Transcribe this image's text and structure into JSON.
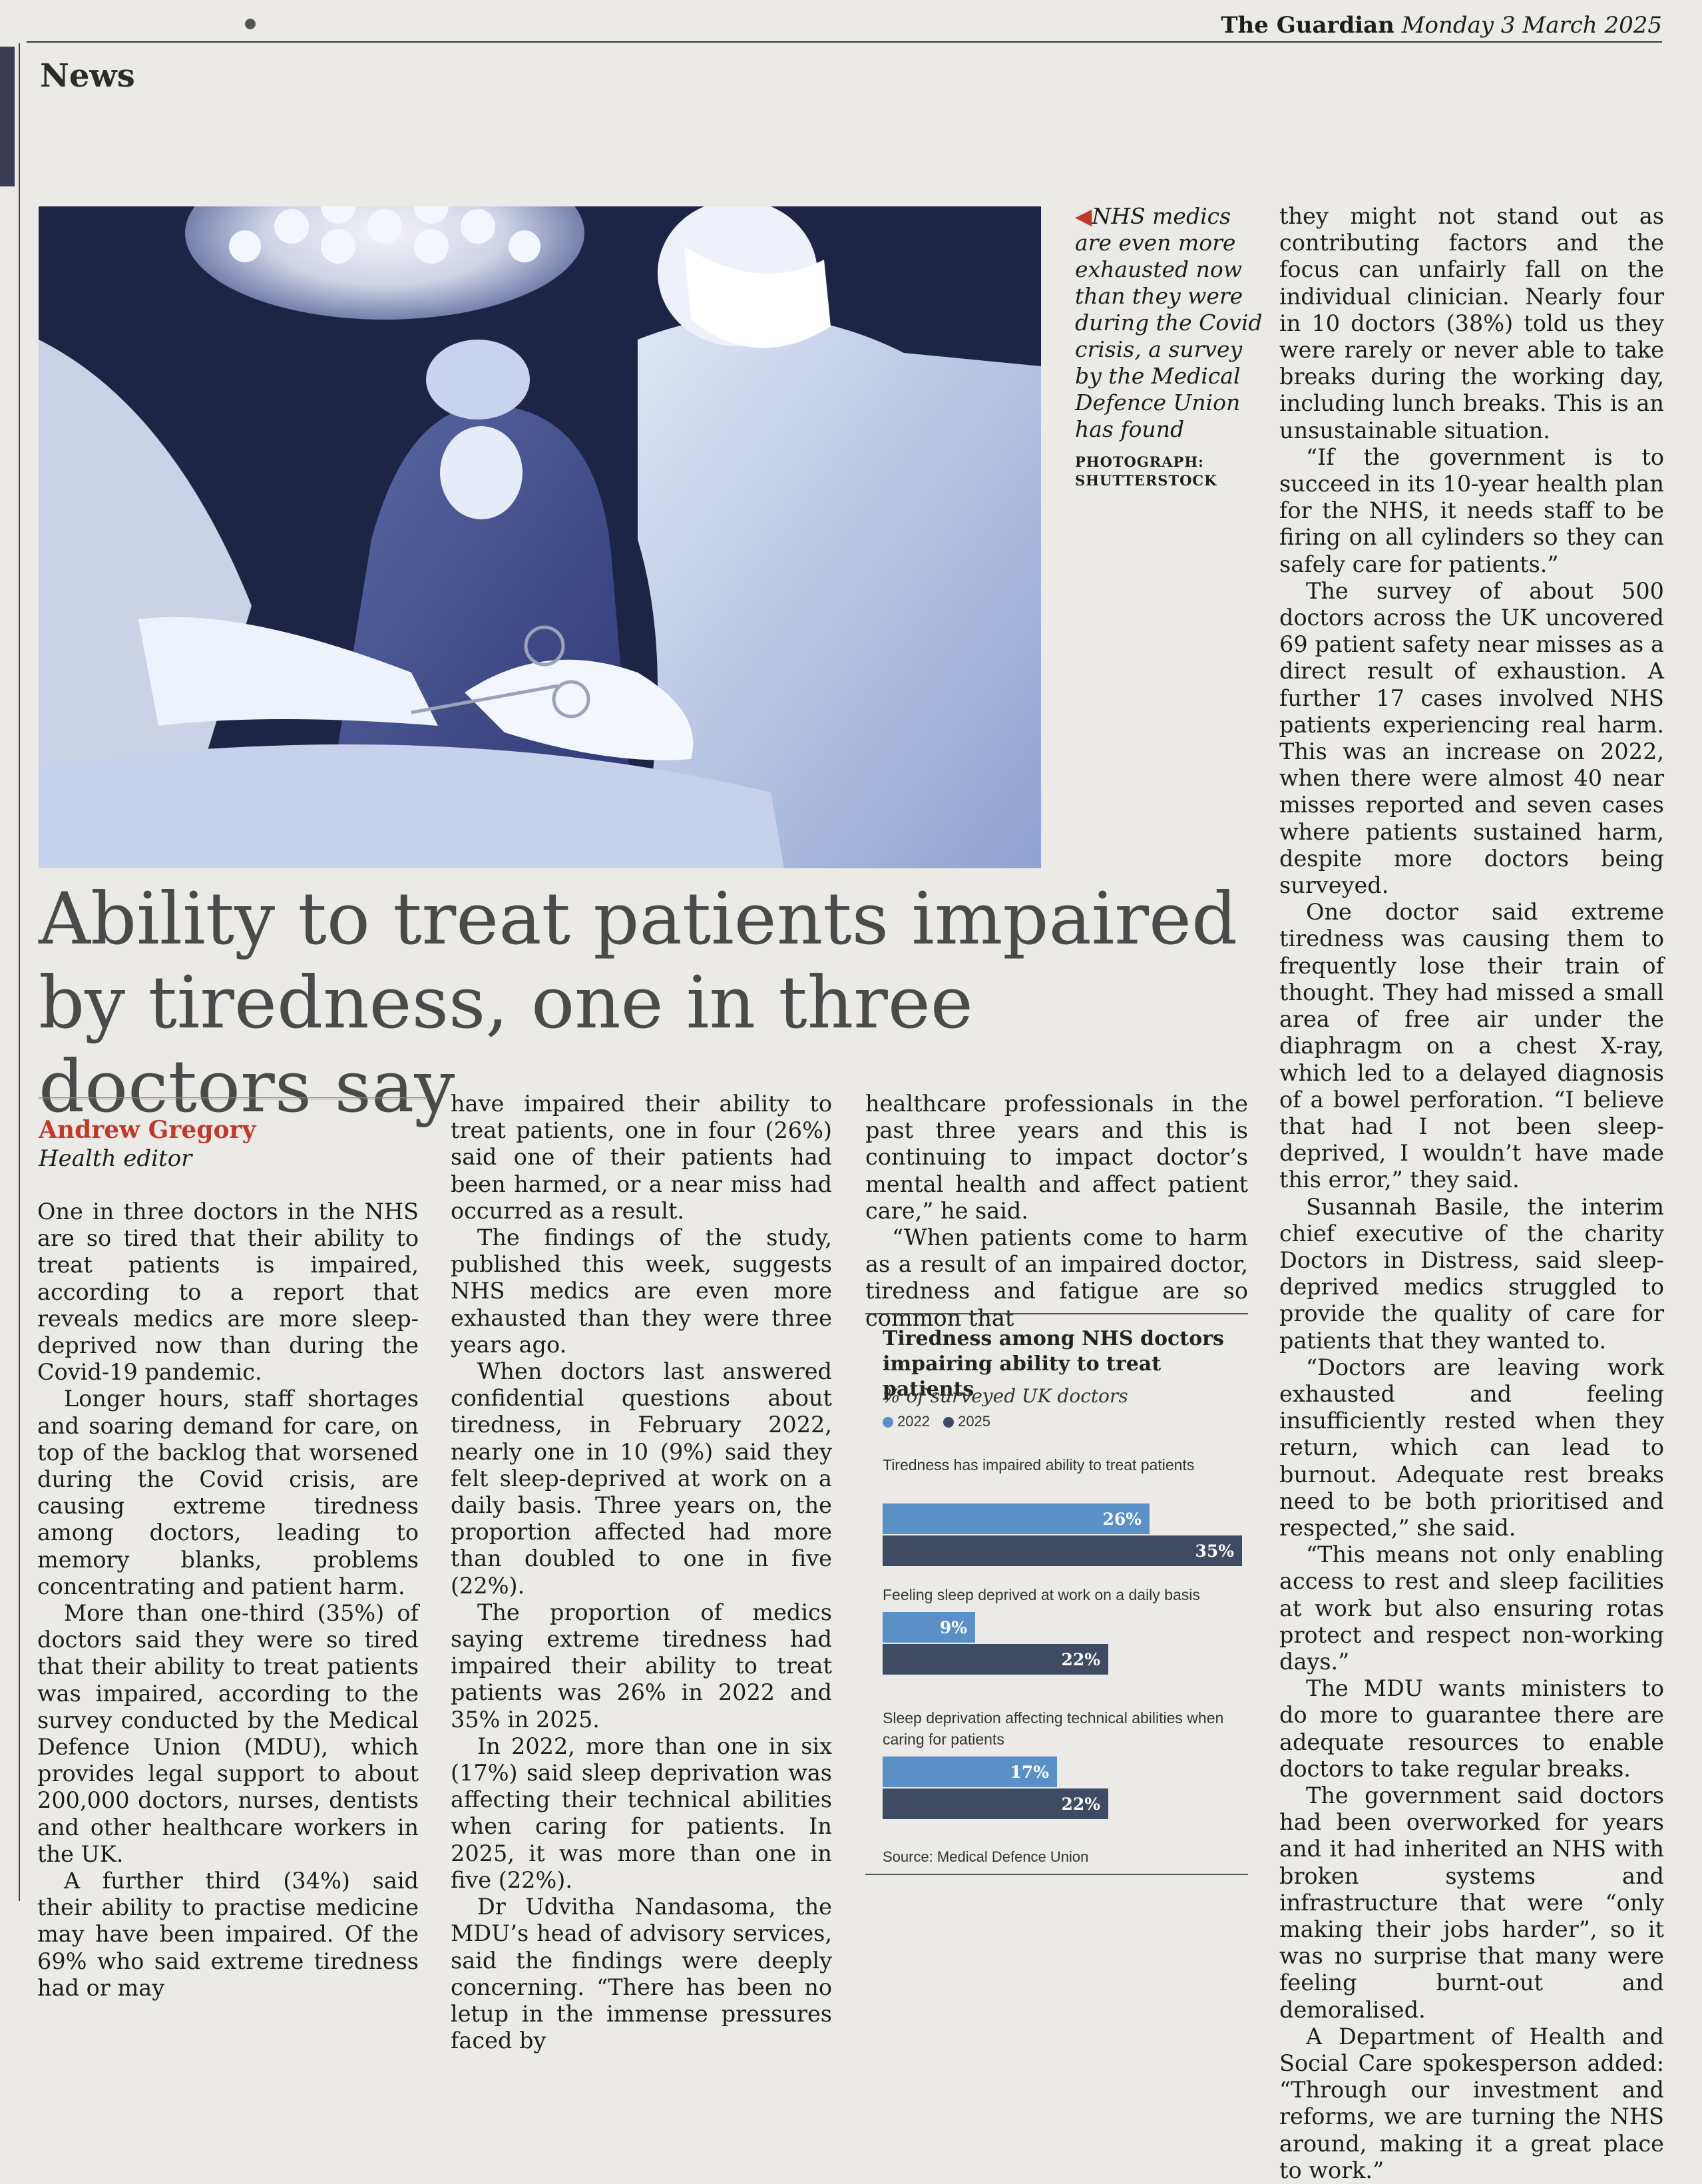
{
  "masthead": {
    "brand": "The Guardian",
    "date": "Monday 3 March 2025"
  },
  "section": "News",
  "caption": {
    "text": "NHS medics are even more exhausted now than they were during the Covid crisis, a survey by the Medical Defence Union has found",
    "credit": "PHOTOGRAPH: SHUTTERSTOCK"
  },
  "headline": "Ability to treat patients impaired by tiredness, one in three doctors say",
  "byline": {
    "author": "Andrew Gregory",
    "role": "Health editor"
  },
  "body": {
    "c1": [
      "One in three doctors in the NHS are so tired that their ability to treat patients is impaired, according to a report that reveals medics are more sleep-deprived now than during the Covid-19 pandemic.",
      "Longer hours, staff shortages and soaring demand for care, on top of the backlog that worsened during the Covid crisis, are causing extreme tiredness among doctors, leading to memory blanks, problems concentrating and patient harm.",
      "More than one-third (35%) of doctors said they were so tired that their ability to treat patients was impaired, according to the survey conducted by the Medical Defence Union (MDU), which provides legal support to about 200,000 doctors, nurses, dentists and other healthcare workers in the UK.",
      "A further third (34%) said their ability to practise medicine may have been impaired. Of the 69% who said extreme tiredness had or may"
    ],
    "c2": [
      "have impaired their ability to treat patients, one in four (26%) said one of their patients had been harmed, or a near miss had occurred as a result.",
      "The findings of the study, published this week, suggests NHS medics are even more exhausted than they were three years ago.",
      "When doctors last answered confidential questions about tiredness, in February 2022, nearly one in 10 (9%) said they felt sleep-deprived at work on a daily basis. Three years on, the proportion affected had more than doubled to one in five (22%).",
      "The proportion of medics saying extreme tiredness had impaired their ability to treat patients was 26% in 2022 and 35% in 2025.",
      "In 2022, more than one in six (17%) said sleep deprivation was affecting their technical abilities when caring for patients. In 2025, it was more than one in five (22%).",
      "Dr Udvitha Nandasoma, the MDU’s head of advisory services, said the findings were deeply concerning. “There has been no letup in the immense pressures faced by"
    ],
    "c3": [
      "healthcare professionals in the past three years and this is continuing to impact doctor’s mental health and affect patient care,” he said.",
      "“When patients come to harm as a result of an impaired doctor, tiredness and fatigue are so common that"
    ],
    "c4": [
      "they might not stand out as contributing factors and the focus can unfairly fall on the individual clinician. Nearly four in 10 doctors (38%) told us they were rarely or never able to take breaks during the working day, including lunch breaks. This is an unsustainable situation.",
      "“If the government is to succeed in its 10-year health plan for the NHS, it needs staff to be firing on all cylinders so they can safely care for patients.”",
      "The survey of about 500 doctors across the UK uncovered 69 patient safety near misses as a direct result of exhaustion. A further 17 cases involved NHS patients experiencing real harm. This was an increase on 2022, when there were almost 40 near misses reported and seven cases where patients sustained harm, despite more doctors being surveyed.",
      "One doctor said extreme tiredness was causing them to frequently lose their train of thought. They had missed a small area of free air under the diaphragm on a chest X-ray, which led to a delayed diagnosis of a bowel perforation. “I believe that had I not been sleep-deprived, I wouldn’t have made this error,” they said.",
      "Susannah Basile, the interim chief executive of the charity Doctors in Distress, said sleep-deprived medics struggled to provide the quality of care for patients that they wanted to.",
      "“Doctors are leaving work exhausted and feeling insufficiently rested when they return, which can lead to burnout. Adequate rest breaks need to be both prioritised and respected,” she said.",
      "“This means not only enabling access to rest and sleep facilities at work but also ensuring rotas protect and respect non-working days.”",
      "The MDU wants ministers to do more to guarantee there are adequate resources to enable doctors to take regular breaks.",
      "The government said doctors had been overworked for years and it had inherited an NHS with broken systems and infrastructure that were “only making their jobs harder”, so it was no surprise that many were feeling burnt-out and demoralised.",
      "A Department of Health and Social Care spokesperson added: “Through our investment and reforms, we are turning the NHS around, making it a great place to work.”"
    ]
  },
  "chart_data": {
    "type": "bar",
    "title": "Tiredness among NHS doctors impairing ability to treat patients",
    "subtitle": "% of surveyed UK doctors",
    "categories": [
      "Tiredness has impaired ability to treat patients",
      "Feeling sleep deprived at work on a daily basis",
      "Sleep deprivation affecting technical abilities when caring for patients"
    ],
    "series": [
      {
        "name": "2022",
        "values": [
          26,
          9,
          17
        ],
        "labels": [
          "26%",
          "9%",
          "17%"
        ],
        "color": "#5a8fc8"
      },
      {
        "name": "2025",
        "values": [
          35,
          22,
          22
        ],
        "labels": [
          "35%",
          "22%",
          "22%"
        ],
        "color": "#3f4a63"
      }
    ],
    "source": "Source: Medical Defence Union",
    "orientation": "horizontal",
    "legend": "top-left"
  }
}
